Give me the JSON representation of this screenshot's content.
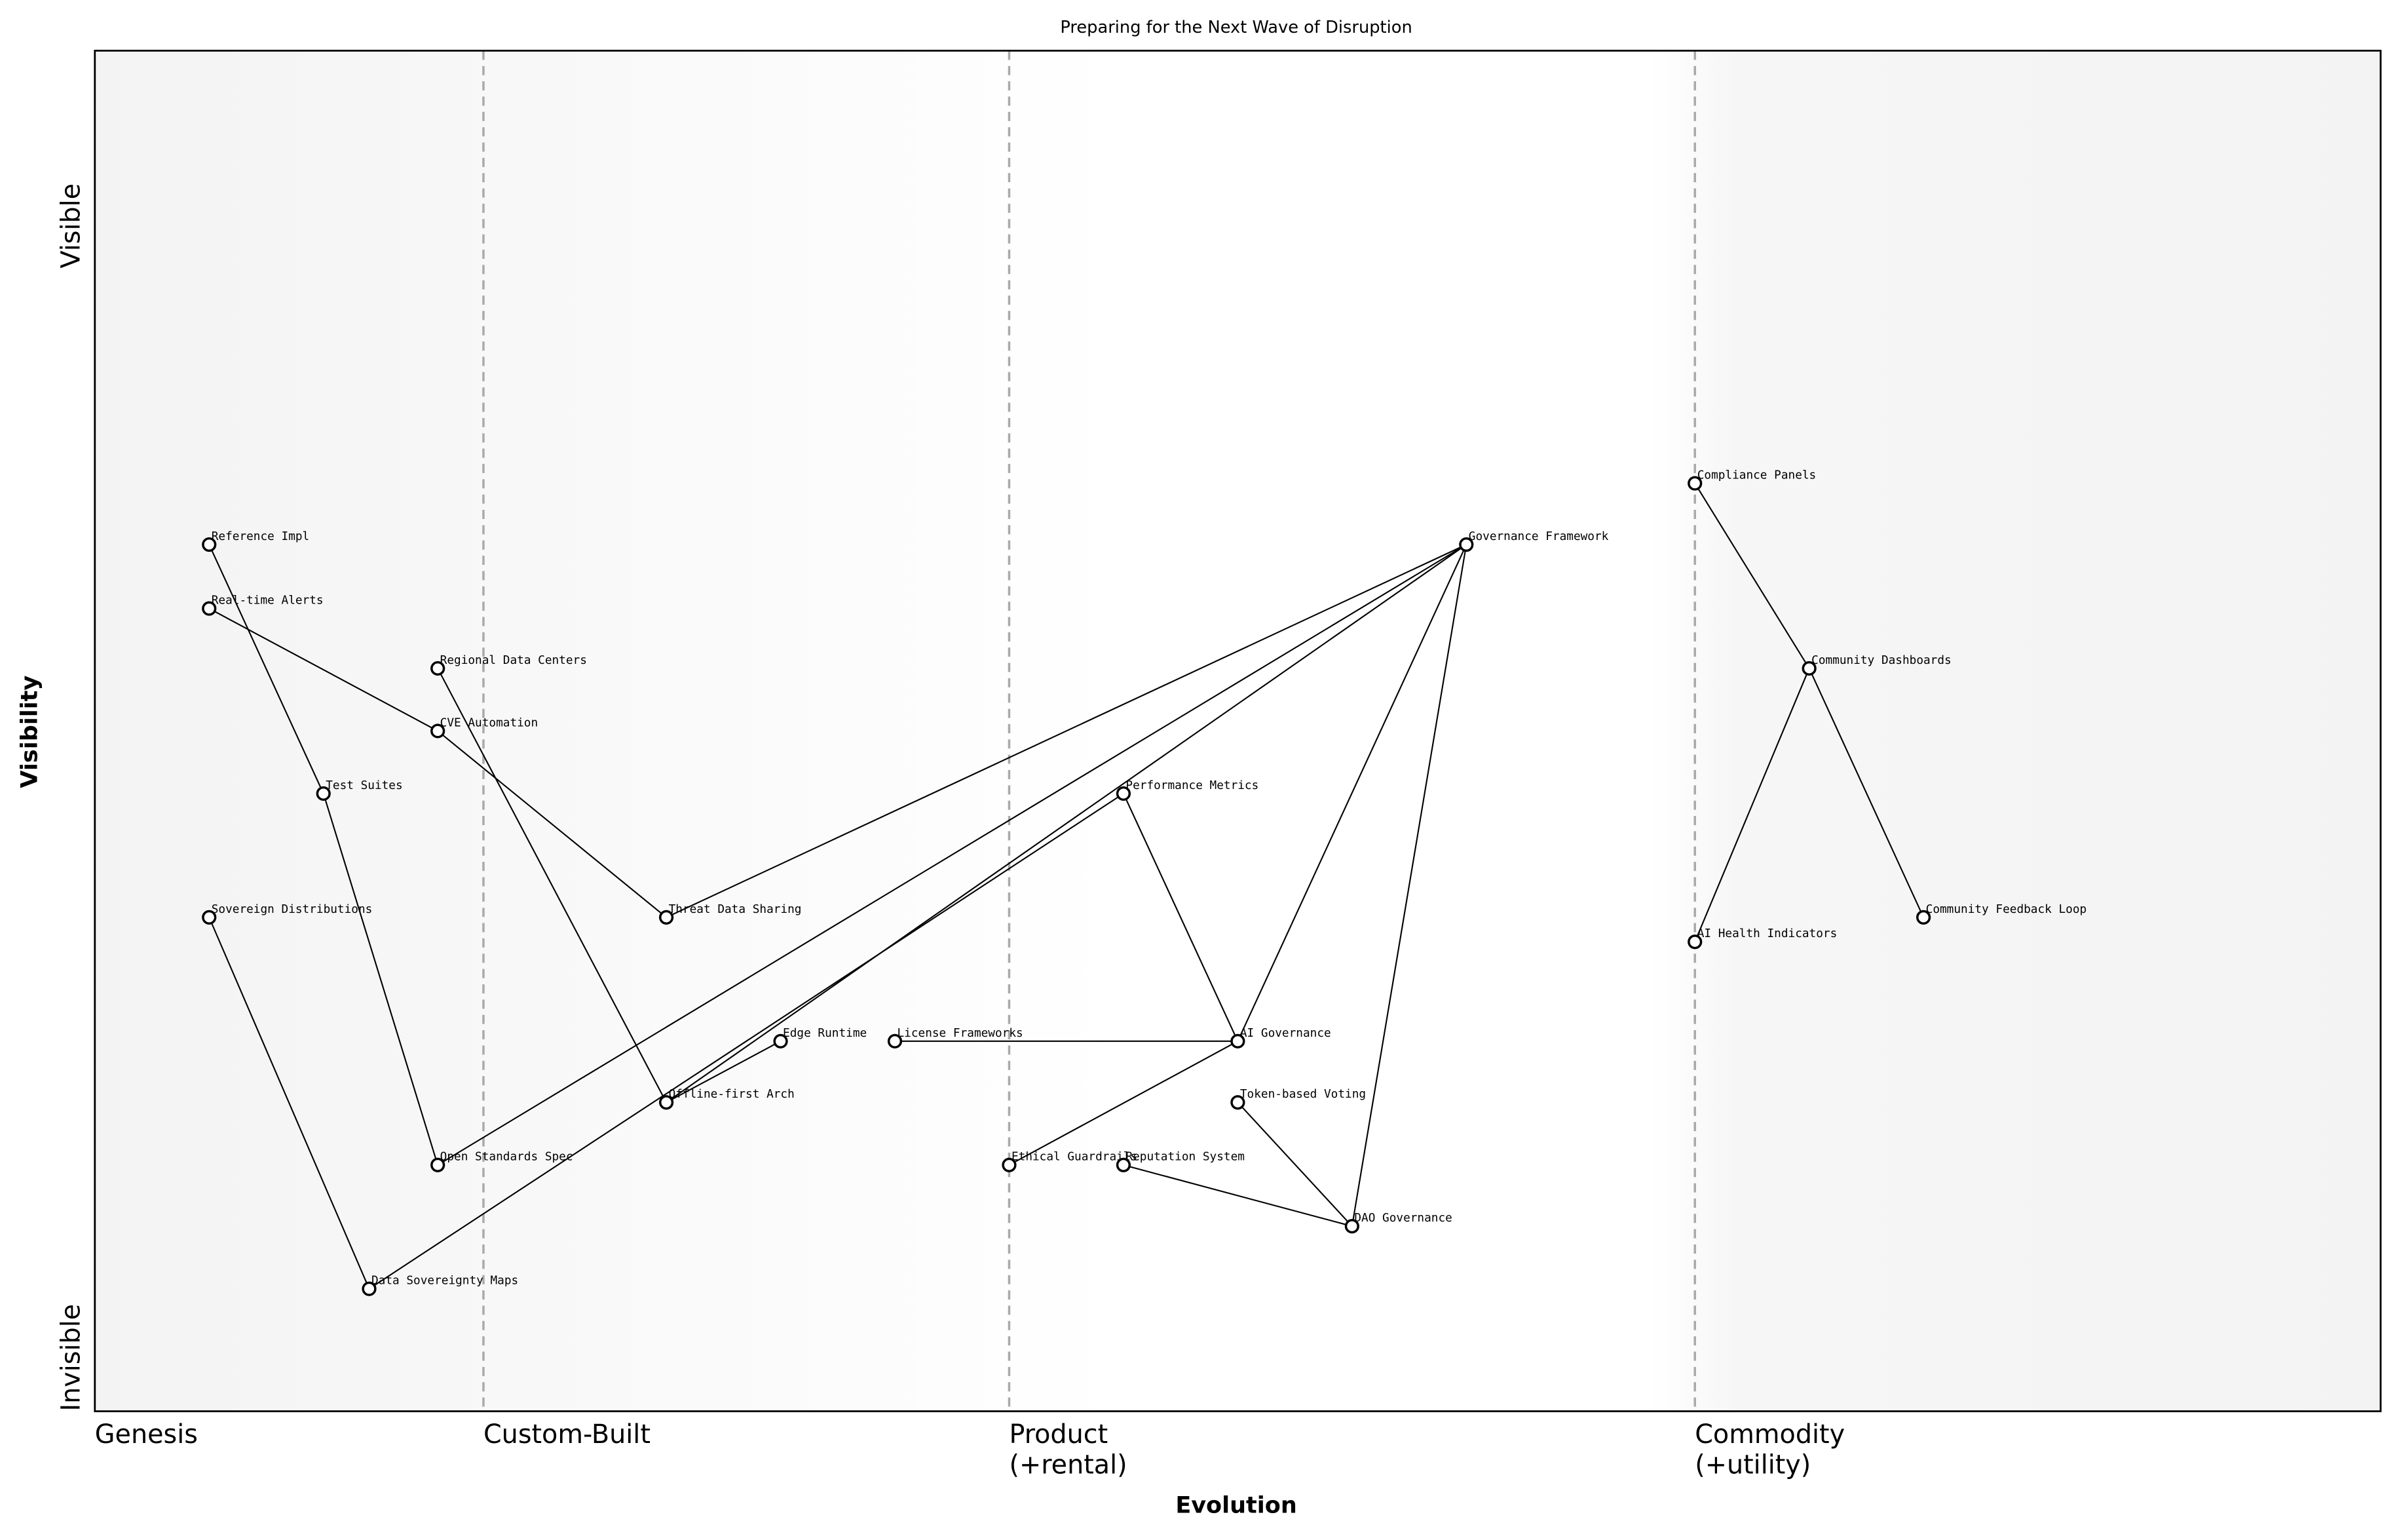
{
  "chart_data": {
    "type": "wardley",
    "title": "Preparing for the Next Wave of Disruption",
    "xlabel": "Evolution",
    "ylabel": "Visibility",
    "xlim": [
      0,
      1
    ],
    "ylim": [
      0,
      1
    ],
    "xticks": [
      {
        "value": 0,
        "label": "Genesis"
      },
      {
        "value": 0.17,
        "label": "Custom-Built"
      },
      {
        "value": 0.4,
        "label": "Product\n(+rental)"
      },
      {
        "value": 0.7,
        "label": "Commodity\n(+utility)"
      }
    ],
    "yticks": [
      {
        "value": 0,
        "label": "Invisible"
      },
      {
        "value": 0.84,
        "label": "Visible"
      }
    ],
    "nodes": [
      {
        "name": "Reference Impl",
        "x": 0.05,
        "y": 0.637
      },
      {
        "name": "Real-time Alerts",
        "x": 0.05,
        "y": 0.59
      },
      {
        "name": "Regional Data Centers",
        "x": 0.15,
        "y": 0.546
      },
      {
        "name": "CVE Automation",
        "x": 0.15,
        "y": 0.5
      },
      {
        "name": "Test Suites",
        "x": 0.1,
        "y": 0.454
      },
      {
        "name": "Sovereign Distributions",
        "x": 0.05,
        "y": 0.363
      },
      {
        "name": "Threat Data Sharing",
        "x": 0.25,
        "y": 0.363
      },
      {
        "name": "Edge Runtime",
        "x": 0.3,
        "y": 0.272
      },
      {
        "name": "License Frameworks",
        "x": 0.35,
        "y": 0.272
      },
      {
        "name": "Offline-first Arch",
        "x": 0.25,
        "y": 0.227
      },
      {
        "name": "Open Standards Spec",
        "x": 0.15,
        "y": 0.181
      },
      {
        "name": "Data Sovereignty Maps",
        "x": 0.12,
        "y": 0.09
      },
      {
        "name": "Ethical Guardrails",
        "x": 0.4,
        "y": 0.181
      },
      {
        "name": "Reputation System",
        "x": 0.45,
        "y": 0.181
      },
      {
        "name": "Performance Metrics",
        "x": 0.45,
        "y": 0.454
      },
      {
        "name": "AI Governance",
        "x": 0.5,
        "y": 0.272
      },
      {
        "name": "Token-based Voting",
        "x": 0.5,
        "y": 0.227
      },
      {
        "name": "DAO Governance",
        "x": 0.55,
        "y": 0.136
      },
      {
        "name": "Governance Framework",
        "x": 0.6,
        "y": 0.637
      },
      {
        "name": "Compliance Panels",
        "x": 0.7,
        "y": 0.682
      },
      {
        "name": "Community Dashboards",
        "x": 0.75,
        "y": 0.546
      },
      {
        "name": "AI Health Indicators",
        "x": 0.7,
        "y": 0.345
      },
      {
        "name": "Community Feedback Loop",
        "x": 0.8,
        "y": 0.363
      }
    ],
    "links": [
      {
        "from": "Reference Impl",
        "to": "Test Suites"
      },
      {
        "from": "Test Suites",
        "to": "Open Standards Spec"
      },
      {
        "from": "Real-time Alerts",
        "to": "CVE Automation"
      },
      {
        "from": "CVE Automation",
        "to": "Threat Data Sharing"
      },
      {
        "from": "Regional Data Centers",
        "to": "Offline-first Arch"
      },
      {
        "from": "Sovereign Distributions",
        "to": "Data Sovereignty Maps"
      },
      {
        "from": "Data Sovereignty Maps",
        "to": "Performance Metrics"
      },
      {
        "from": "Governance Framework",
        "to": "Threat Data Sharing"
      },
      {
        "from": "Governance Framework",
        "to": "Open Standards Spec"
      },
      {
        "from": "Governance Framework",
        "to": "Offline-first Arch"
      },
      {
        "from": "Governance Framework",
        "to": "AI Governance"
      },
      {
        "from": "Governance Framework",
        "to": "DAO Governance"
      },
      {
        "from": "Performance Metrics",
        "to": "AI Governance"
      },
      {
        "from": "Edge Runtime",
        "to": "Offline-first Arch"
      },
      {
        "from": "License Frameworks",
        "to": "AI Governance"
      },
      {
        "from": "AI Governance",
        "to": "Ethical Guardrails"
      },
      {
        "from": "Token-based Voting",
        "to": "DAO Governance"
      },
      {
        "from": "Reputation System",
        "to": "DAO Governance"
      },
      {
        "from": "Compliance Panels",
        "to": "Community Dashboards"
      },
      {
        "from": "Community Dashboards",
        "to": "AI Health Indicators"
      },
      {
        "from": "Community Dashboards",
        "to": "Community Feedback Loop"
      }
    ]
  }
}
